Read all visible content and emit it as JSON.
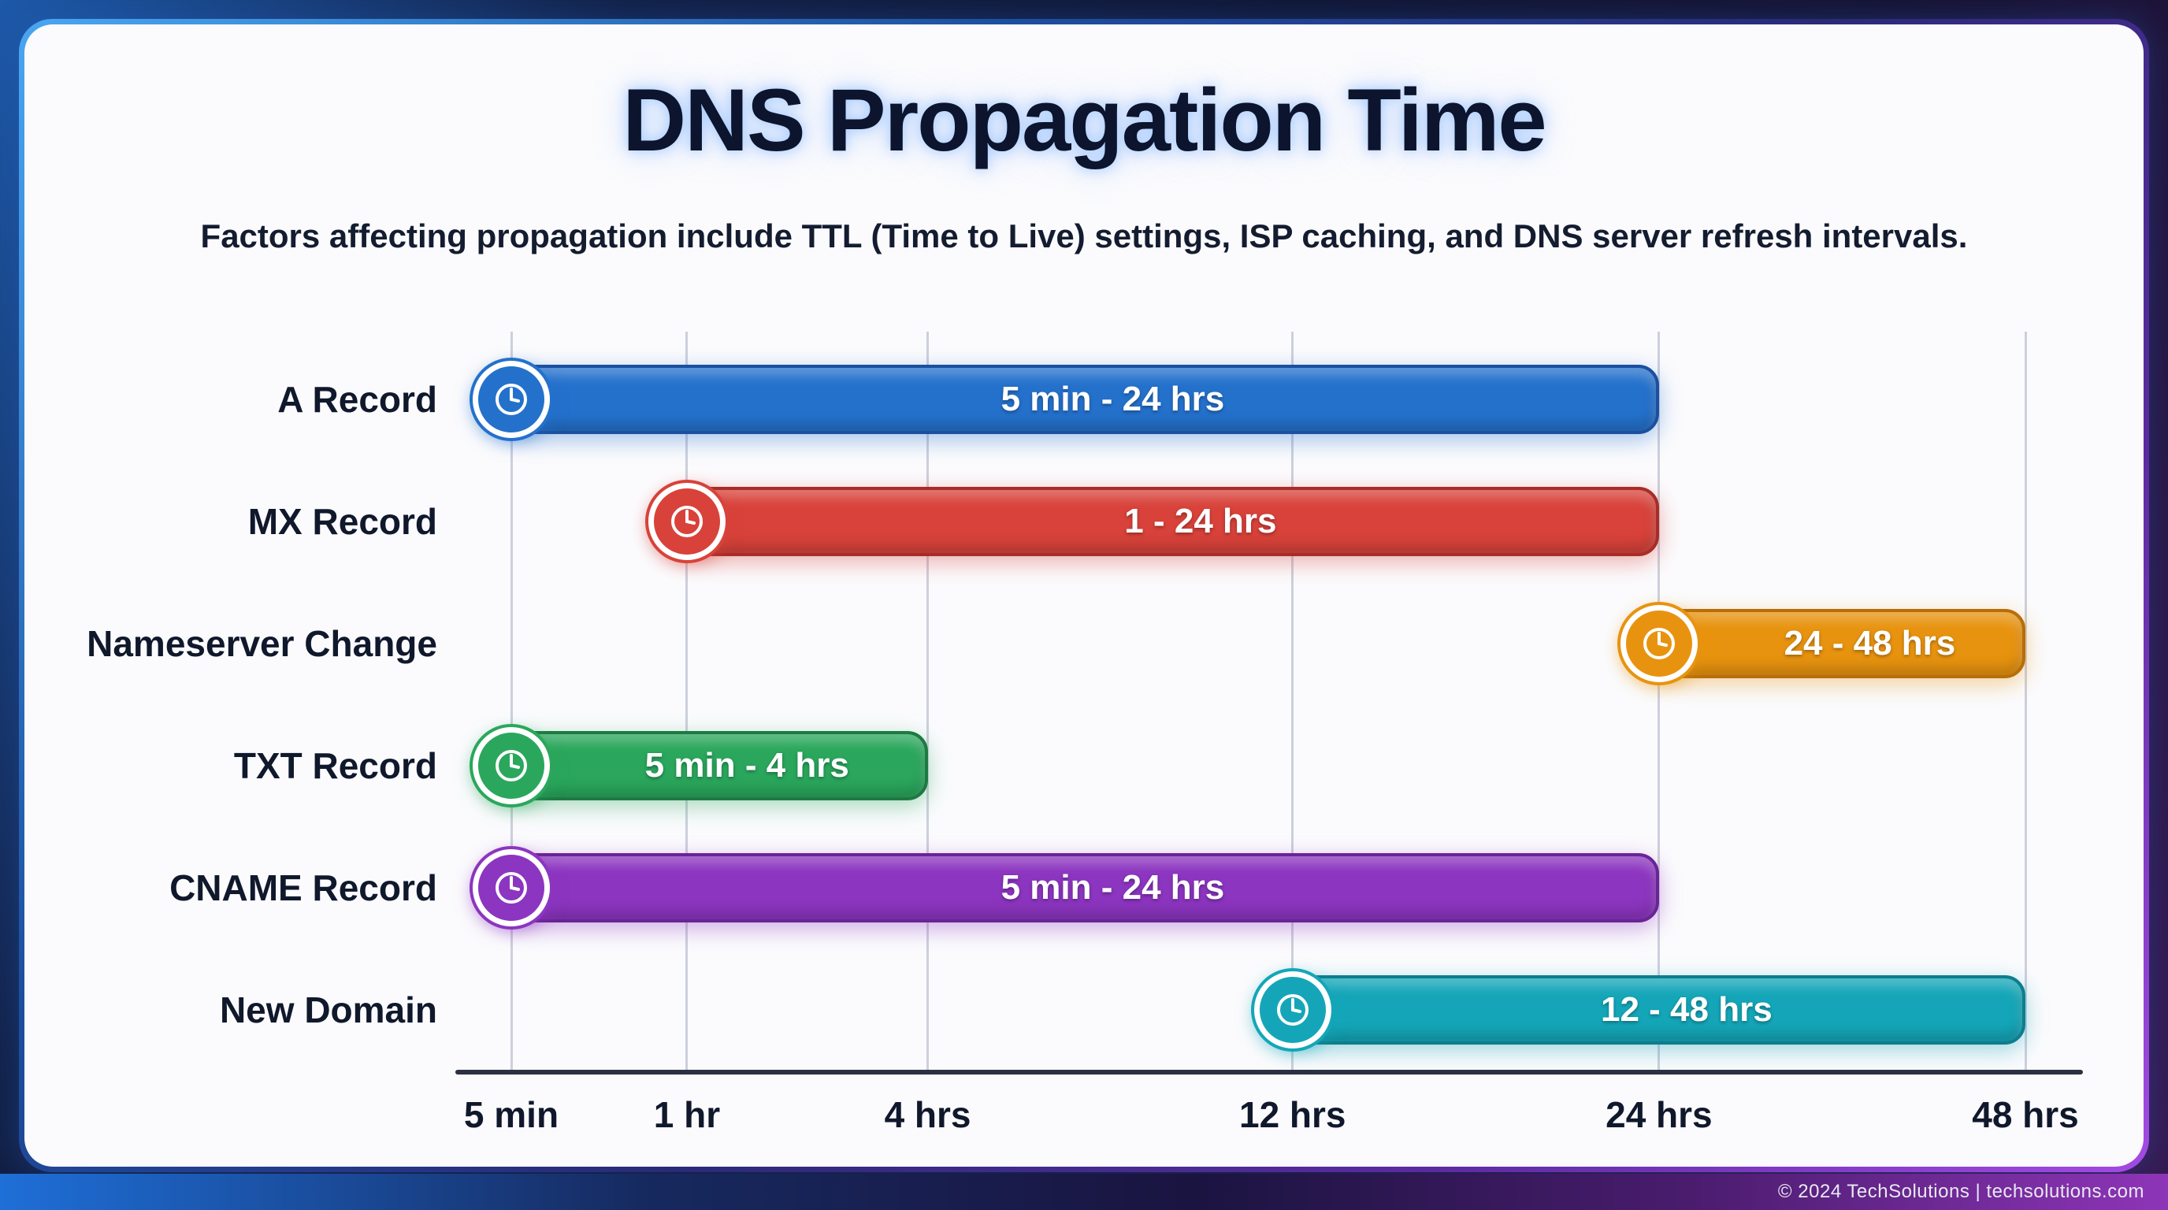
{
  "title": "DNS Propagation Time",
  "subtitle": "Factors affecting propagation include TTL (Time to Live) settings, ISP caching, and DNS server refresh intervals.",
  "footer": {
    "text": "© 2024 TechSolutions | techsolutions.com"
  },
  "chart_data": {
    "type": "bar",
    "variant": "horizontal-range-timeline",
    "title": "DNS Propagation Time",
    "xlabel": "",
    "ylabel": "",
    "grid": true,
    "legend": false,
    "axis_ticks": [
      "5 min",
      "1 hr",
      "4 hrs",
      "12 hrs",
      "24 hrs",
      "48 hrs"
    ],
    "axis_positions_pct": [
      0,
      11.6,
      27.5,
      51.6,
      75.8,
      100
    ],
    "rows": [
      {
        "label": "A Record",
        "value_label": "5 min - 24 hrs",
        "start_tick": "5 min",
        "end_tick": "24 hrs",
        "start_pct": 0,
        "end_pct": 75.8,
        "color": "#2471cc",
        "border_color": "#1b4fa0"
      },
      {
        "label": "MX Record",
        "value_label": "1 - 24 hrs",
        "start_tick": "1 hr",
        "end_tick": "24 hrs",
        "start_pct": 11.6,
        "end_pct": 75.8,
        "color": "#d8423a",
        "border_color": "#a82c28"
      },
      {
        "label": "Nameserver Change",
        "value_label": "24 - 48 hrs",
        "start_tick": "24 hrs",
        "end_tick": "48 hrs",
        "start_pct": 75.8,
        "end_pct": 100,
        "color": "#e8930f",
        "border_color": "#b86e08"
      },
      {
        "label": "TXT Record",
        "value_label": "5 min - 4 hrs",
        "start_tick": "5 min",
        "end_tick": "4 hrs",
        "start_pct": 0,
        "end_pct": 27.5,
        "color": "#2aa75c",
        "border_color": "#1d7a42"
      },
      {
        "label": "CNAME Record",
        "value_label": "5 min - 24 hrs",
        "start_tick": "5 min",
        "end_tick": "24 hrs",
        "start_pct": 0,
        "end_pct": 75.8,
        "color": "#8c35c0",
        "border_color": "#6a2496"
      },
      {
        "label": "New Domain",
        "value_label": "12 - 48 hrs",
        "start_tick": "12 hrs",
        "end_tick": "48 hrs",
        "start_pct": 51.6,
        "end_pct": 100,
        "color": "#14a6b8",
        "border_color": "#0d7e8e"
      }
    ]
  }
}
